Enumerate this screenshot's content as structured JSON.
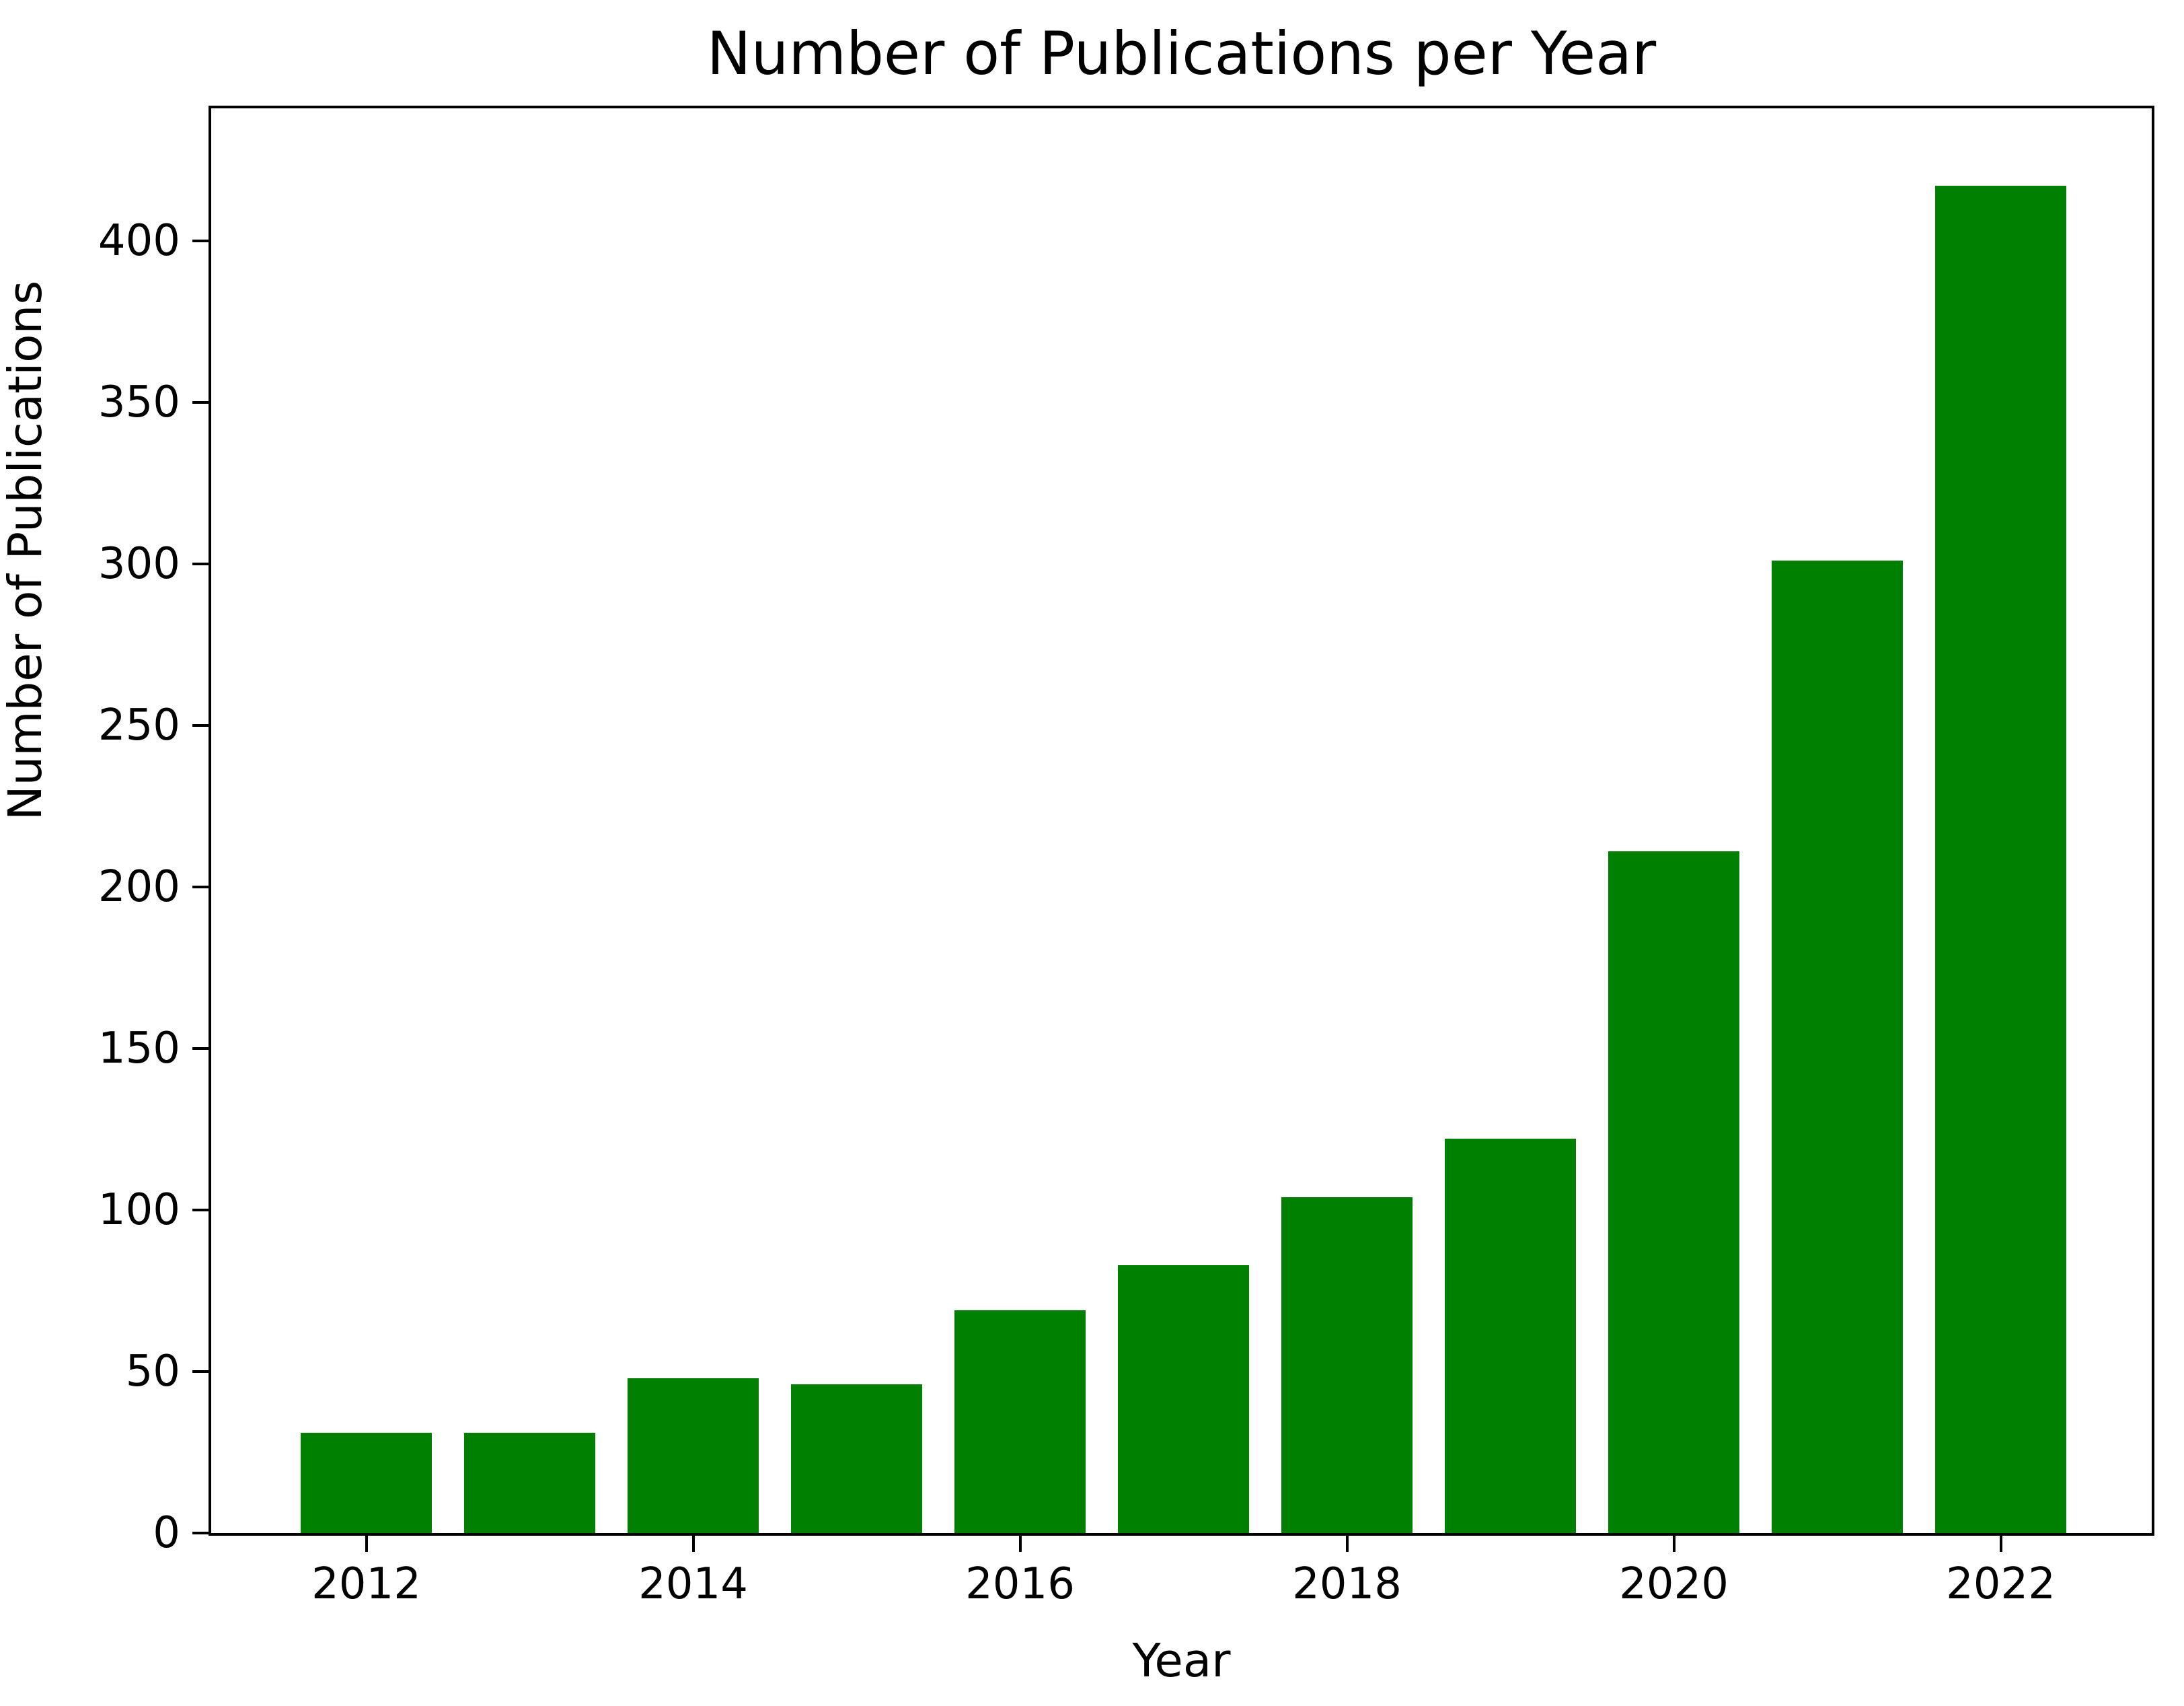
{
  "chart_data": {
    "type": "bar",
    "title": "Number of Publications per Year",
    "xlabel": "Year",
    "ylabel": "Number of Publications",
    "categories": [
      2012,
      2013,
      2014,
      2015,
      2016,
      2017,
      2018,
      2019,
      2020,
      2021,
      2022
    ],
    "values": [
      31,
      31,
      48,
      46,
      69,
      83,
      104,
      122,
      211,
      301,
      417
    ],
    "bar_color": "#008000",
    "axis_color": "#000000",
    "background_color": "#ffffff",
    "ylim": [
      0,
      441
    ],
    "yticks": [
      0,
      50,
      100,
      150,
      200,
      250,
      300,
      350,
      400
    ],
    "xticks_labeled": [
      2012,
      2014,
      2016,
      2018,
      2020,
      2022
    ],
    "grid": false,
    "legend": "none"
  }
}
